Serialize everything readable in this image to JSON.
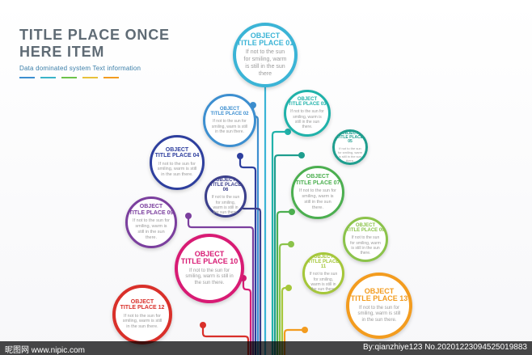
{
  "header": {
    "title_line1": "TITLE PLACE ONCE",
    "title_line2": "HERE ITEM",
    "subtitle": "Data dominated system Text information",
    "swatch_colors": [
      "#3d8fd0",
      "#3bb4c9",
      "#6cc24a",
      "#e8c13b",
      "#f39c1f"
    ]
  },
  "nodes": [
    {
      "id": "01",
      "line1": "OBJECT",
      "line2": "TITLE PLACE 01",
      "desc": "If not to the sun for smiling, warm is still in the sun there",
      "color": "#3bb4d6"
    },
    {
      "id": "02",
      "line1": "OBJECT",
      "line2": "TITLE PLACE 02",
      "desc": "If not to the sun for smiling, warm is still in the sun there.",
      "color": "#3d8fd0"
    },
    {
      "id": "03",
      "line1": "OBJECT",
      "line2": "TITLE PLACE 03",
      "desc": "If not to the sun for smiling, warm is still in the sun there.",
      "color": "#20b2aa"
    },
    {
      "id": "04",
      "line1": "OBJECT",
      "line2": "TITLE PLACE 04",
      "desc": "If not to the sun for smiling, warm is still in the sun there.",
      "color": "#2e3f9e"
    },
    {
      "id": "05",
      "line1": "OBJECT",
      "line2": "TITLE PLACE 05",
      "desc": "If not to the sun for smiling, warm is still in the sun there.",
      "color": "#1f9e8e"
    },
    {
      "id": "06",
      "line1": "OBJECT",
      "line2": "TITLE PLACE 06",
      "desc": "If not to the sun for smiling, warm is still in the sun there.",
      "color": "#3b3f8c"
    },
    {
      "id": "07",
      "line1": "OBJECT",
      "line2": "TITLE PLACE 07",
      "desc": "If not to the sun for smiling, warm is still in the sun there.",
      "color": "#4caf50"
    },
    {
      "id": "09",
      "line1": "OBJECT",
      "line2": "TITLE PLACE 09",
      "desc": "If not to the sun for smiling, warm is still in the sun there.",
      "color": "#7b3f9e"
    },
    {
      "id": "09b",
      "line1": "OBJECT",
      "line2": "TITLE PLACE 09",
      "desc": "If not to the sun for smiling, warm is still in the sun there.",
      "color": "#8bc34a"
    },
    {
      "id": "10",
      "line1": "OBJECT",
      "line2": "TITLE PLACE 10",
      "desc": "If not to the sun for smiling, warm is still in the sun there.",
      "color": "#d81b74"
    },
    {
      "id": "11",
      "line1": "OBJECT",
      "line2": "TITLE PLACE 11",
      "desc": "If not to the sun for smiling, warm is still in the sun there.",
      "color": "#a5c73a"
    },
    {
      "id": "12",
      "line1": "OBJECT",
      "line2": "TITLE PLACE 12",
      "desc": "If not to the sun for smiling, warm is still in the sun there.",
      "color": "#d9302a"
    },
    {
      "id": "13",
      "line1": "OBJECT",
      "line2": "TITLE PLACE 13",
      "desc": "If not to the sun for smiling, warm is still in the sun there.",
      "color": "#f39c1f"
    }
  ],
  "watermark": {
    "left": "昵图网 www.nipic.com",
    "right": "By:qianzhiye123 No.20201223094525019883"
  }
}
